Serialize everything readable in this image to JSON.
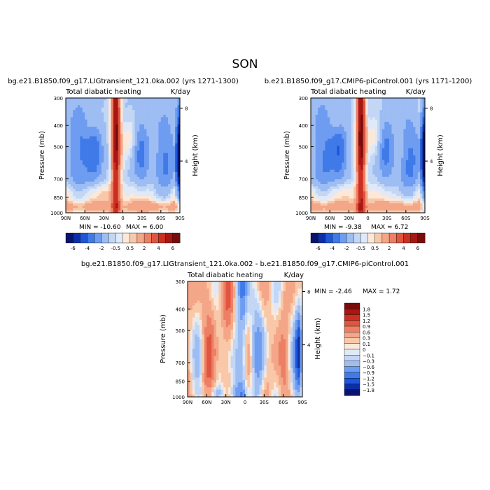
{
  "figure": {
    "title": "SON"
  },
  "colors": {
    "negative": [
      "#08146e",
      "#0c2fa8",
      "#1f55d8",
      "#3f7ae8",
      "#6e9cf0",
      "#9dbdf3",
      "#c3d7f5",
      "#dfe9f8"
    ],
    "positive": [
      "#fce8d8",
      "#f8c8a8",
      "#f4a688",
      "#ec7f64",
      "#e0553f",
      "#cb2f22",
      "#a81712",
      "#790c0c"
    ]
  },
  "chart_data": [
    {
      "type": "heatmap",
      "subtitle": "bg.e21.B1850.f09_g17.LIGtransient_121.0ka.002 (yrs 1271-1300)",
      "variable": "Total diabatic heating",
      "units": "K/day",
      "xlabel": "",
      "ylabel": "Pressure (mb)",
      "ylabel_right": "Height (km)",
      "x_ticks": [
        "90N",
        "60N",
        "30N",
        "0",
        "30S",
        "60S",
        "90S"
      ],
      "y_ticks": [
        "300",
        "400",
        "500",
        "700",
        "850",
        "1000"
      ],
      "right_ticks": [
        "8",
        "4"
      ],
      "min_label": "MIN =  -10.60",
      "max_label": "MAX =    6.00",
      "levels": [
        -6,
        -5,
        -4,
        -3,
        -2,
        -1,
        -0.5,
        0,
        0.5,
        1,
        2,
        3,
        4,
        5,
        6
      ],
      "colorbar_labels": [
        "-6",
        "-4",
        "-2",
        "-0.5",
        "0.5",
        "2",
        "4",
        "6"
      ]
    },
    {
      "type": "heatmap",
      "subtitle": "b.e21.B1850.f09_g17.CMIP6-piControl.001 (yrs 1171-1200)",
      "variable": "Total diabatic heating",
      "units": "K/day",
      "xlabel": "",
      "ylabel": "Pressure (mb)",
      "ylabel_right": "Height (km)",
      "x_ticks": [
        "90N",
        "60N",
        "30N",
        "0",
        "30S",
        "60S",
        "90S"
      ],
      "y_ticks": [
        "300",
        "400",
        "500",
        "700",
        "850",
        "1000"
      ],
      "right_ticks": [
        "8",
        "4"
      ],
      "min_label": "MIN =   -9.38",
      "max_label": "MAX =    6.72",
      "levels": [
        -6,
        -5,
        -4,
        -3,
        -2,
        -1,
        -0.5,
        0,
        0.5,
        1,
        2,
        3,
        4,
        5,
        6
      ],
      "colorbar_labels": [
        "-6",
        "-4",
        "-2",
        "-0.5",
        "0.5",
        "2",
        "4",
        "6"
      ]
    },
    {
      "type": "heatmap",
      "subtitle": "bg.e21.B1850.f09_g17.LIGtransient_121.0ka.002 - b.e21.B1850.f09_g17.CMIP6-piControl.001",
      "variable": "Total diabatic heating",
      "units": "K/day",
      "xlabel": "",
      "ylabel": "Pressure (mb)",
      "ylabel_right": "Height (km)",
      "x_ticks": [
        "90N",
        "60N",
        "30N",
        "0",
        "30S",
        "60S",
        "90S"
      ],
      "y_ticks": [
        "300",
        "400",
        "500",
        "700",
        "850",
        "1000"
      ],
      "right_ticks": [
        "8",
        "4"
      ],
      "min_label": "MIN =   -2.46",
      "max_label": "MAX =    1.72",
      "levels": [
        -1.8,
        -1.5,
        -1.2,
        -0.9,
        -0.6,
        -0.3,
        -0.1,
        0,
        0.1,
        0.3,
        0.6,
        0.9,
        1.2,
        1.5,
        1.8
      ],
      "colorbar_labels": [
        "1.8",
        "1.5",
        "1.2",
        "0.9",
        "0.6",
        "0.3",
        "0.1",
        "0",
        "−0.1",
        "−0.3",
        "−0.6",
        "−0.9",
        "−1.2",
        "−1.5",
        "−1.8"
      ]
    }
  ]
}
